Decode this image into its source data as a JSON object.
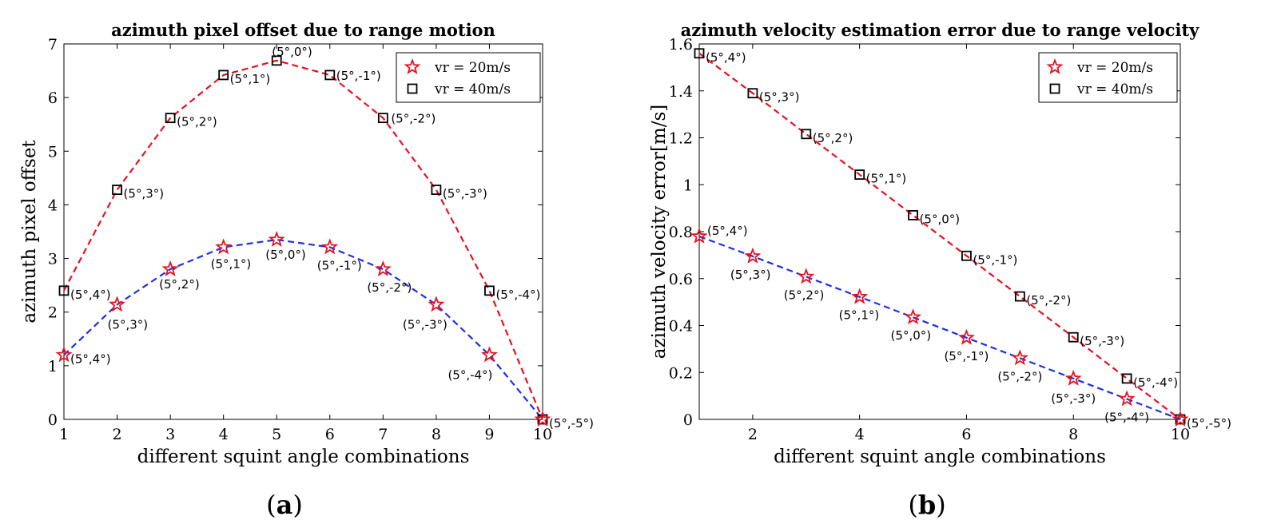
{
  "chart_data": [
    {
      "type": "line",
      "panel": "a",
      "caption_letter": "a",
      "title": "azimuth pixel offset due to range motion",
      "xlabel": "different squint angle combinations",
      "ylabel": "azimuth pixel offset",
      "xlim": [
        1,
        10
      ],
      "ylim": [
        0,
        7
      ],
      "xticks": [
        1,
        2,
        3,
        4,
        5,
        6,
        7,
        8,
        9,
        10
      ],
      "yticks": [
        0,
        1,
        2,
        3,
        4,
        5,
        6,
        7
      ],
      "legend_position": "top-right",
      "x": [
        1,
        2,
        3,
        4,
        5,
        6,
        7,
        8,
        9,
        10
      ],
      "series": [
        {
          "name": "vr = 20m/s",
          "marker": "star",
          "marker_color": "#e8101f",
          "line_color": "#1f2fe6",
          "values": [
            1.2,
            2.14,
            2.8,
            3.21,
            3.35,
            3.21,
            2.8,
            2.14,
            1.2,
            0
          ],
          "point_labels": [
            "(5°,4°)",
            "(5°,3°)",
            "(5°,2°)",
            "(5°,1°)",
            "(5°,0°)",
            "(5°,-1°)",
            "(5°,-2°)",
            "(5°,-3°)",
            "(5°,-4°)",
            ""
          ]
        },
        {
          "name": "vr = 40m/s",
          "marker": "square",
          "marker_color": "#000000",
          "line_color": "#e8101f",
          "values": [
            2.4,
            4.28,
            5.62,
            6.42,
            6.69,
            6.42,
            5.62,
            4.28,
            2.4,
            0
          ],
          "point_labels": [
            "(5°,4°)",
            "(5°,3°)",
            "(5°,2°)",
            "(5°,1°)",
            "(5°,0°)",
            "(5°,-1°)",
            "(5°,-2°)",
            "(5°,-3°)",
            "(5°,-4°)",
            "(5°,-5°)"
          ]
        }
      ]
    },
    {
      "type": "line",
      "panel": "b",
      "caption_letter": "b",
      "title": "azimuth velocity estimation error due to range velocity",
      "xlabel": "different squint angle combinations",
      "ylabel": "azimuth velocity error[m/s]",
      "xlim": [
        1,
        10
      ],
      "ylim": [
        0,
        1.6
      ],
      "xticks": [
        2,
        4,
        6,
        8,
        10
      ],
      "yticks": [
        0,
        0.2,
        0.4,
        0.6,
        0.8,
        1,
        1.2,
        1.4,
        1.6
      ],
      "legend_position": "top-right",
      "x": [
        1,
        2,
        3,
        4,
        5,
        6,
        7,
        8,
        9,
        10
      ],
      "series": [
        {
          "name": "vr = 20m/s",
          "marker": "star",
          "marker_color": "#e8101f",
          "line_color": "#1f2fe6",
          "values": [
            0.78,
            0.695,
            0.608,
            0.522,
            0.435,
            0.348,
            0.261,
            0.174,
            0.087,
            0
          ],
          "point_labels": [
            "(5°,4°)",
            "(5°,3°)",
            "(5°,2°)",
            "(5°,1°)",
            "(5°,0°)",
            "(5°,-1°)",
            "(5°,-2°)",
            "(5°,-3°)",
            "(5°,-4°)",
            ""
          ]
        },
        {
          "name": "vr = 40m/s",
          "marker": "square",
          "marker_color": "#000000",
          "line_color": "#e8101f",
          "values": [
            1.56,
            1.39,
            1.216,
            1.043,
            0.87,
            0.697,
            0.524,
            0.35,
            0.174,
            0
          ],
          "point_labels": [
            "(5°,4°)",
            "(5°,3°)",
            "(5°,2°)",
            "(5°,1°)",
            "(5°,0°)",
            "(5°,-1°)",
            "(5°,-2°)",
            "(5°,-3°)",
            "(5°,-4°)",
            "(5°,-5°)"
          ]
        }
      ]
    }
  ]
}
